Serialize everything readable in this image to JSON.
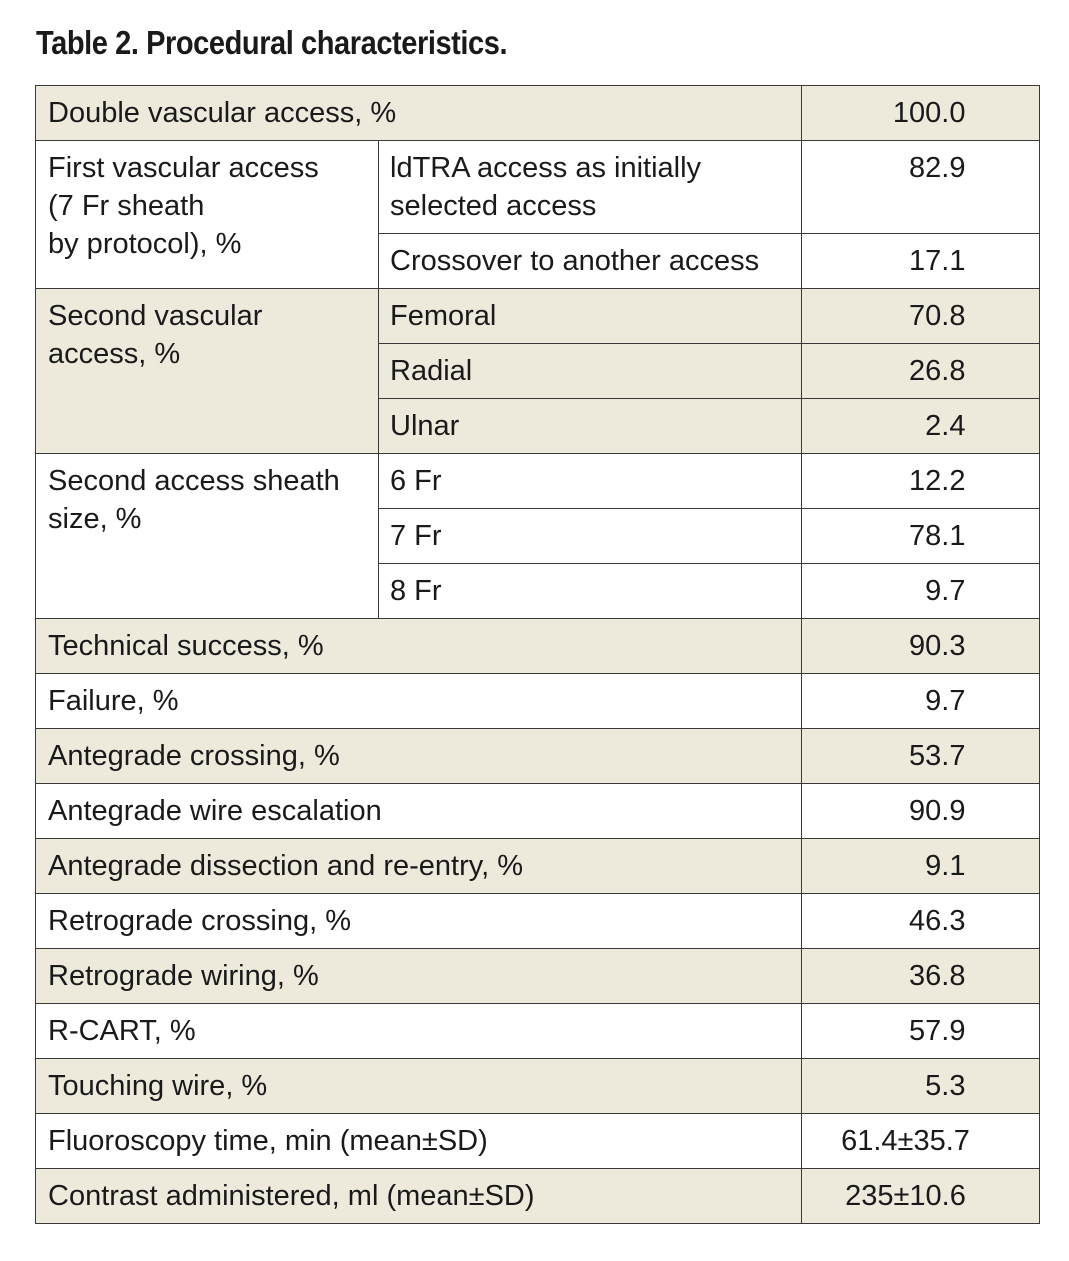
{
  "title": "Table 2. Procedural characteristics.",
  "rows": {
    "double_access": {
      "label": "Double vascular access, %",
      "value": "100.0"
    },
    "first_access": {
      "label": "First vascular access (7 Fr sheath by protocol), %",
      "label_lines": [
        "First vascular access",
        "(7 Fr sheath",
        "by protocol), %"
      ],
      "sub": [
        {
          "label": "ldTRA access as initially selected access",
          "label_lines": [
            "ldTRA access as initially",
            "selected access"
          ],
          "value": "82.9"
        },
        {
          "label": "Crossover to another access",
          "value": "17.1"
        }
      ]
    },
    "second_access": {
      "label": "Second vascular access, %",
      "label_lines": [
        "Second vascular",
        "access, %"
      ],
      "sub": [
        {
          "label": "Femoral",
          "value": "70.8"
        },
        {
          "label": "Radial",
          "value": "26.8"
        },
        {
          "label": "Ulnar",
          "value": "2.4"
        }
      ]
    },
    "sheath_size": {
      "label": "Second access sheath size, %",
      "label_lines": [
        "Second access sheath",
        "size, %"
      ],
      "sub": [
        {
          "label": "6 Fr",
          "value": "12.2"
        },
        {
          "label": "7 Fr",
          "value": "78.1"
        },
        {
          "label": "8 Fr",
          "value": "9.7"
        }
      ]
    },
    "simple": [
      {
        "label": "Technical success, %",
        "value": "90.3"
      },
      {
        "label": "Failure, %",
        "value": "9.7"
      },
      {
        "label": "Antegrade crossing, %",
        "value": "53.7"
      },
      {
        "label": "Antegrade wire escalation",
        "value": "90.9"
      },
      {
        "label": "Antegrade dissection and re-entry, %",
        "value": "9.1"
      },
      {
        "label": "Retrograde crossing, %",
        "value": "46.3"
      },
      {
        "label": "Retrograde wiring, %",
        "value": "36.8"
      },
      {
        "label": "R-CART, %",
        "value": "57.9"
      },
      {
        "label": "Touching wire, %",
        "value": "5.3"
      },
      {
        "label": "Fluoroscopy time, min (mean±SD)",
        "value": "61.4±35.7"
      },
      {
        "label": "Contrast administered, ml (mean±SD)",
        "value": "235±10.6"
      }
    ]
  },
  "colors": {
    "shade": "#edeadc",
    "border": "#3a3a3a",
    "text": "#1a1a1a"
  }
}
